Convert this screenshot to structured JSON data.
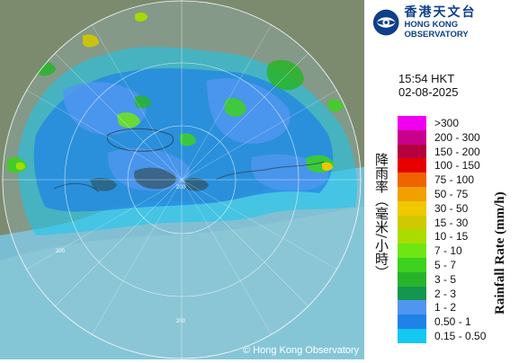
{
  "header": {
    "org_name_zh": "香港天文台",
    "org_name_en": "HONG KONG OBSERVATORY",
    "logo_icon": "hko-logo-icon"
  },
  "timestamp": {
    "time": "15:54 HKT",
    "date": "02-08-2025"
  },
  "legend": {
    "title_zh": "降雨率（毫米/小時）",
    "title_en": "Rainfall Rate (mm/h)",
    "items": [
      {
        "label": ">300",
        "color": "#f000f0"
      },
      {
        "label": "200 - 300",
        "color": "#c8008c"
      },
      {
        "label": "150 - 200",
        "color": "#b4003c"
      },
      {
        "label": "100 - 150",
        "color": "#e60000"
      },
      {
        "label": "75 - 100",
        "color": "#f06400"
      },
      {
        "label": "50 - 75",
        "color": "#f0a000"
      },
      {
        "label": "30 - 50",
        "color": "#f0c800"
      },
      {
        "label": "15 - 30",
        "color": "#d2c800"
      },
      {
        "label": "10 - 15",
        "color": "#aadc00"
      },
      {
        "label": "7 - 10",
        "color": "#6ee614"
      },
      {
        "label": "5 - 7",
        "color": "#3cd21e"
      },
      {
        "label": "3 - 5",
        "color": "#28b428"
      },
      {
        "label": "2 - 3",
        "color": "#149650"
      },
      {
        "label": "1 - 2",
        "color": "#5096f0"
      },
      {
        "label": "0.50 - 1",
        "color": "#1e82e6"
      },
      {
        "label": "0.15 - 0.50",
        "color": "#14c8f0"
      }
    ]
  },
  "map": {
    "range_ring_labels": [
      "200",
      "200",
      "200"
    ],
    "copyright": "© Hong Kong Observatory",
    "colors": {
      "sea": "#85c6d6",
      "land": "#7c8a6e",
      "outside": "#ffffff"
    }
  }
}
